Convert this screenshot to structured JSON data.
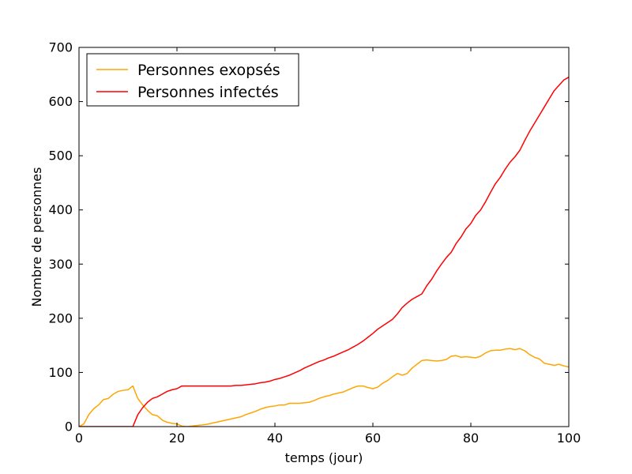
{
  "chart_data": {
    "type": "line",
    "title": "",
    "xlabel": "temps (jour)",
    "ylabel": "Nombre de personnes",
    "xlim": [
      0,
      100
    ],
    "ylim": [
      0,
      700
    ],
    "xticks": [
      0,
      20,
      40,
      60,
      80,
      100
    ],
    "yticks": [
      0,
      100,
      200,
      300,
      400,
      500,
      600,
      700
    ],
    "grid": false,
    "legend": "top-left",
    "series": [
      {
        "name": "Personnes exopsés",
        "color": "#ffa500",
        "x": [
          0,
          1,
          2,
          3,
          4,
          5,
          6,
          7,
          8,
          9,
          10,
          11,
          12,
          13,
          14,
          15,
          16,
          17,
          18,
          19,
          20,
          21,
          22,
          23,
          24,
          25,
          26,
          27,
          28,
          29,
          30,
          31,
          32,
          33,
          34,
          35,
          36,
          37,
          38,
          39,
          40,
          41,
          42,
          43,
          44,
          45,
          46,
          47,
          48,
          49,
          50,
          51,
          52,
          53,
          54,
          55,
          56,
          57,
          58,
          59,
          60,
          61,
          62,
          63,
          64,
          65,
          66,
          67,
          68,
          69,
          70,
          71,
          72,
          73,
          74,
          75,
          76,
          77,
          78,
          79,
          80,
          81,
          82,
          83,
          84,
          85,
          86,
          87,
          88,
          89,
          90,
          91,
          92,
          93,
          94,
          95,
          96,
          97,
          98,
          99,
          100
        ],
        "y": [
          0,
          5,
          22,
          33,
          40,
          50,
          52,
          60,
          65,
          67,
          68,
          75,
          52,
          40,
          30,
          22,
          20,
          12,
          8,
          6,
          5,
          1,
          0,
          1,
          2,
          3,
          4,
          6,
          8,
          10,
          12,
          14,
          16,
          18,
          22,
          25,
          28,
          32,
          35,
          37,
          38,
          40,
          40,
          43,
          43,
          43,
          44,
          45,
          48,
          52,
          55,
          57,
          60,
          62,
          64,
          68,
          72,
          75,
          75,
          72,
          70,
          73,
          80,
          85,
          92,
          98,
          95,
          98,
          108,
          115,
          122,
          123,
          122,
          121,
          122,
          124,
          130,
          131,
          128,
          129,
          128,
          127,
          130,
          136,
          140,
          141,
          141,
          143,
          144,
          142,
          144,
          140,
          133,
          128,
          125,
          117,
          115,
          113,
          115,
          112,
          110
        ]
      },
      {
        "name": "Personnes infectés",
        "color": "#ff0000",
        "x": [
          0,
          1,
          2,
          3,
          4,
          5,
          6,
          7,
          8,
          9,
          10,
          11,
          12,
          13,
          14,
          15,
          16,
          17,
          18,
          19,
          20,
          21,
          22,
          23,
          24,
          25,
          26,
          27,
          28,
          29,
          30,
          31,
          32,
          33,
          34,
          35,
          36,
          37,
          38,
          39,
          40,
          41,
          42,
          43,
          44,
          45,
          46,
          47,
          48,
          49,
          50,
          51,
          52,
          53,
          54,
          55,
          56,
          57,
          58,
          59,
          60,
          61,
          62,
          63,
          64,
          65,
          66,
          67,
          68,
          69,
          70,
          71,
          72,
          73,
          74,
          75,
          76,
          77,
          78,
          79,
          80,
          81,
          82,
          83,
          84,
          85,
          86,
          87,
          88,
          89,
          90,
          91,
          92,
          93,
          94,
          95,
          96,
          97,
          98,
          99,
          100
        ],
        "y": [
          0,
          0,
          0,
          0,
          0,
          0,
          0,
          0,
          0,
          0,
          0,
          0,
          22,
          35,
          45,
          52,
          55,
          60,
          65,
          68,
          70,
          75,
          75,
          75,
          75,
          75,
          75,
          75,
          75,
          75,
          75,
          75,
          76,
          76,
          77,
          78,
          79,
          81,
          82,
          84,
          87,
          89,
          92,
          95,
          99,
          103,
          108,
          112,
          116,
          120,
          123,
          127,
          130,
          134,
          138,
          142,
          147,
          152,
          158,
          165,
          172,
          180,
          186,
          192,
          198,
          208,
          220,
          228,
          235,
          240,
          245,
          260,
          272,
          287,
          300,
          312,
          322,
          338,
          350,
          365,
          375,
          390,
          400,
          415,
          432,
          448,
          460,
          475,
          488,
          498,
          510,
          528,
          545,
          560,
          575,
          590,
          605,
          620,
          630,
          640,
          645
        ]
      }
    ]
  }
}
